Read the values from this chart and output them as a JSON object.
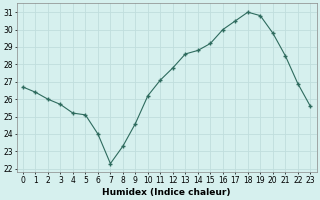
{
  "x": [
    0,
    1,
    2,
    3,
    4,
    5,
    6,
    7,
    8,
    9,
    10,
    11,
    12,
    13,
    14,
    15,
    16,
    17,
    18,
    19,
    20,
    21,
    22,
    23
  ],
  "y": [
    26.7,
    26.4,
    26.0,
    25.7,
    25.2,
    25.1,
    24.0,
    22.3,
    23.3,
    24.6,
    26.2,
    27.1,
    27.8,
    28.6,
    28.8,
    29.2,
    30.0,
    30.5,
    31.0,
    30.8,
    29.8,
    28.5,
    26.9,
    25.6
  ],
  "line_color": "#2e6b5e",
  "marker": "+",
  "bg_color": "#d6f0ee",
  "grid_color": "#c0dedd",
  "xlabel": "Humidex (Indice chaleur)",
  "ylim": [
    21.8,
    31.5
  ],
  "xlim": [
    -0.5,
    23.5
  ],
  "yticks": [
    22,
    23,
    24,
    25,
    26,
    27,
    28,
    29,
    30,
    31
  ],
  "xticks": [
    0,
    1,
    2,
    3,
    4,
    5,
    6,
    7,
    8,
    9,
    10,
    11,
    12,
    13,
    14,
    15,
    16,
    17,
    18,
    19,
    20,
    21,
    22,
    23
  ],
  "label_fontsize": 6.5,
  "tick_fontsize": 5.5
}
